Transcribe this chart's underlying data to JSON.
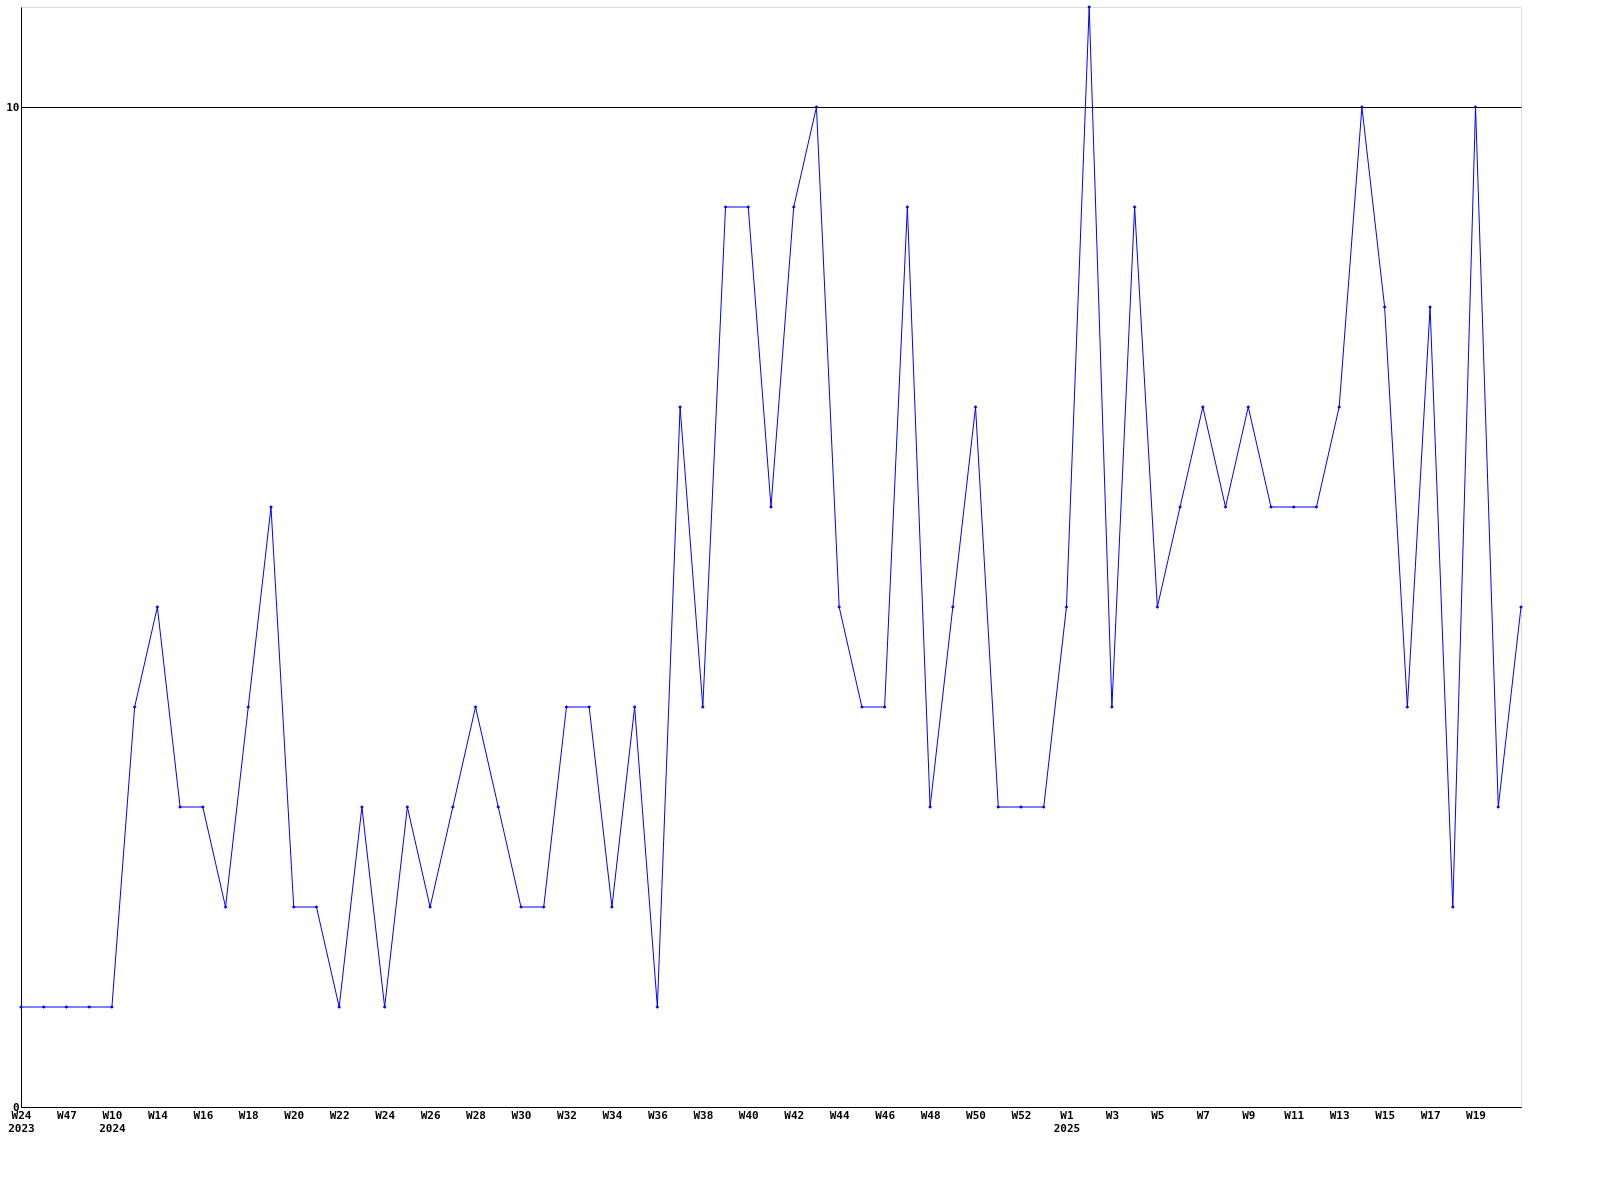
{
  "chart_data": {
    "type": "line",
    "categories": [
      "W24\n2023",
      null,
      "W47",
      null,
      "W10\n2024",
      null,
      "W14",
      null,
      "W16",
      null,
      "W18",
      null,
      "W20",
      null,
      "W22",
      null,
      "W24",
      null,
      "W26",
      null,
      "W28",
      null,
      "W30",
      null,
      "W32",
      null,
      "W34",
      null,
      "W36",
      null,
      "W38",
      null,
      "W40",
      null,
      "W42",
      null,
      "W44",
      null,
      "W46",
      null,
      "W48",
      null,
      "W50",
      null,
      "W52",
      null,
      "W1\n2025",
      null,
      "W3",
      null,
      "W5",
      null,
      "W7",
      null,
      "W9",
      null,
      "W11",
      null,
      "W13",
      null,
      "W15",
      null,
      "W17",
      null,
      "W19",
      null,
      null
    ],
    "series": [
      {
        "color": "#0000ff",
        "values": [
          1,
          1,
          1,
          1,
          1,
          4,
          5,
          3,
          3,
          2,
          4,
          6,
          2,
          2,
          1,
          3,
          1,
          3,
          2,
          3,
          4,
          3,
          2,
          2,
          4,
          4,
          2,
          4,
          1,
          7,
          4,
          9,
          9,
          6,
          9,
          10,
          5,
          4,
          4,
          9,
          3,
          5,
          7,
          3,
          3,
          3,
          5,
          11,
          4,
          9,
          5,
          6,
          7,
          6,
          7,
          6,
          6,
          6,
          7,
          10,
          8,
          4,
          8,
          2,
          10,
          3,
          5
        ]
      }
    ],
    "ylim": [
      0,
      11
    ],
    "yticks": [
      0,
      10
    ],
    "grid": "y",
    "marker": "diamond",
    "line_style": "solid"
  }
}
